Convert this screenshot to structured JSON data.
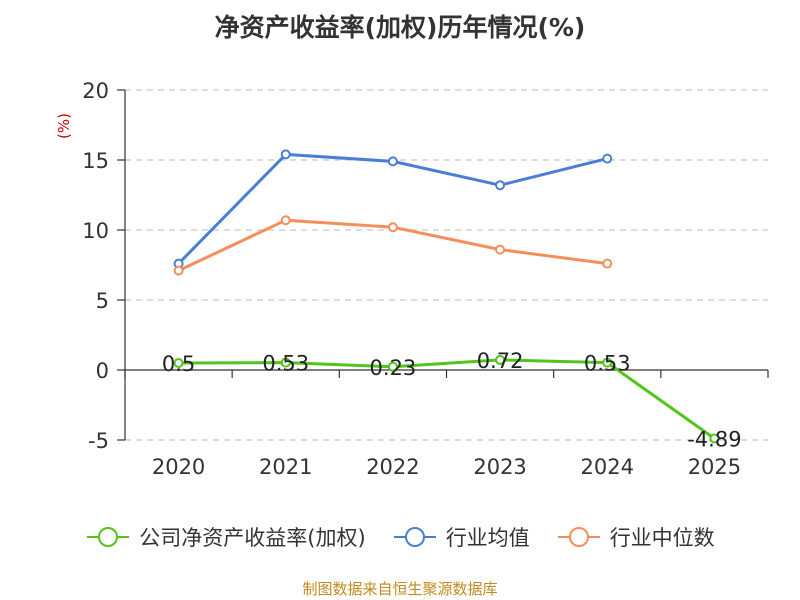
{
  "chart_data": {
    "type": "line",
    "title": "净资产收益率(加权)历年情况(%)",
    "ylabel": "(%)",
    "xlabel": "",
    "categories": [
      "2020",
      "2021",
      "2022",
      "2023",
      "2024",
      "2025"
    ],
    "ylim": [
      -5,
      20
    ],
    "yticks": [
      -5,
      0,
      5,
      10,
      15,
      20
    ],
    "grid": true,
    "legend_position": "bottom",
    "series": [
      {
        "name": "公司净资产收益率(加权)",
        "color": "#52c41a",
        "values": [
          0.5,
          0.53,
          0.23,
          0.72,
          0.53,
          -4.89
        ],
        "labels": [
          "0.5",
          "0.53",
          "0.23",
          "0.72",
          "0.53",
          "-4.89"
        ]
      },
      {
        "name": "行业均值",
        "color": "#4a7ed6",
        "values": [
          7.6,
          15.4,
          14.9,
          13.2,
          15.1,
          null
        ]
      },
      {
        "name": "行业中位数",
        "color": "#f58e5b",
        "values": [
          7.1,
          10.7,
          10.2,
          8.6,
          7.6,
          null
        ]
      }
    ]
  },
  "source_note": "制图数据来自恒生聚源数据库"
}
